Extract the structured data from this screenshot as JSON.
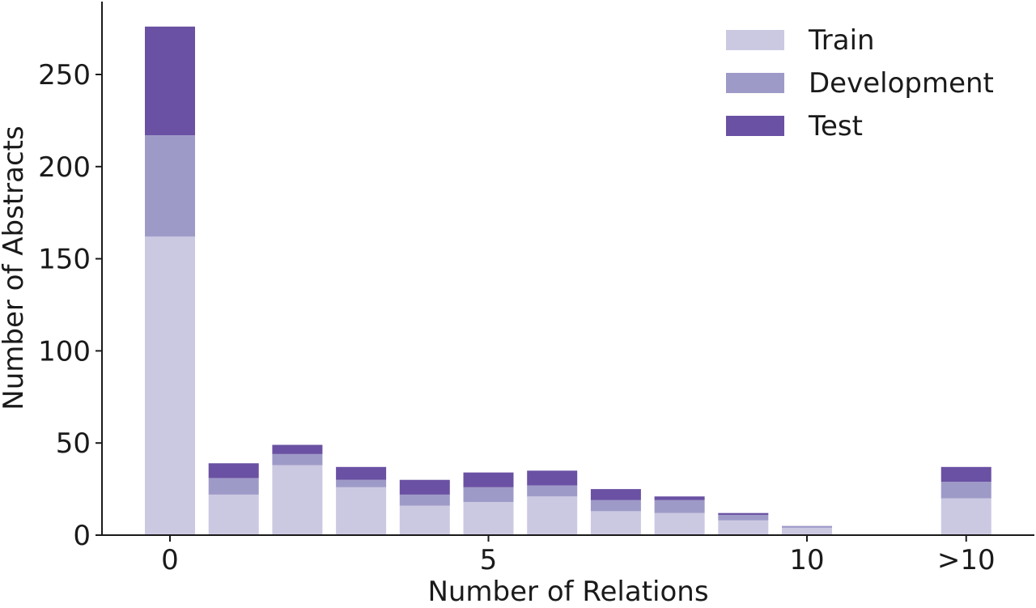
{
  "chart_data": {
    "type": "bar",
    "stacked": true,
    "categories": [
      "0",
      "1",
      "2",
      "3",
      "4",
      "5",
      "6",
      "7",
      "8",
      "9",
      "10",
      ">10"
    ],
    "x_tick_labels": [
      {
        "category": "0",
        "label": "0"
      },
      {
        "category": "5",
        "label": "5"
      },
      {
        "category": "10",
        "label": "10"
      },
      {
        "category": ">10",
        "label": ">10"
      }
    ],
    "series": [
      {
        "name": "Train",
        "color": "#cbc9e2",
        "values": [
          162,
          22,
          38,
          26,
          16,
          18,
          21,
          13,
          12,
          8,
          4,
          20
        ]
      },
      {
        "name": "Development",
        "color": "#9e9ac8",
        "values": [
          55,
          9,
          6,
          4,
          6,
          8,
          6,
          6,
          7,
          3,
          1,
          9
        ]
      },
      {
        "name": "Test",
        "color": "#6a51a3",
        "values": [
          59,
          8,
          5,
          7,
          8,
          8,
          8,
          6,
          2,
          1,
          0,
          8
        ]
      }
    ],
    "ylim": [
      0,
      280
    ],
    "yticks": [
      0,
      50,
      100,
      150,
      200,
      250
    ],
    "xlabel": "Number of Relations",
    "ylabel": "Number of Abstracts",
    "legend_position": "top-right",
    "grid": false
  }
}
